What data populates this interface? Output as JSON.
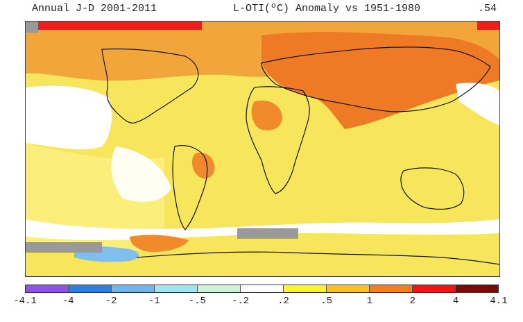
{
  "header": {
    "title_left": "Annual J-D 2001-2011",
    "title_center": "L-OTI(ºC) Anomaly vs 1951-1980",
    "global_mean": ".54"
  },
  "legend": {
    "tick_labels": [
      "-4.1",
      "-4",
      "-2",
      "-1",
      "-.5",
      "-.2",
      ".2",
      ".5",
      "1",
      "2",
      "4",
      "4.1"
    ],
    "colors": [
      "#8e52e6",
      "#2f7fe0",
      "#72b5ec",
      "#9fe6f2",
      "#cdf3d6",
      "#ffffff",
      "#fff233",
      "#fdc124",
      "#f57f1c",
      "#f21414",
      "#7a0a08"
    ]
  },
  "map": {
    "land_outline_color": "#111111",
    "missing_data_color": "#999999"
  }
}
